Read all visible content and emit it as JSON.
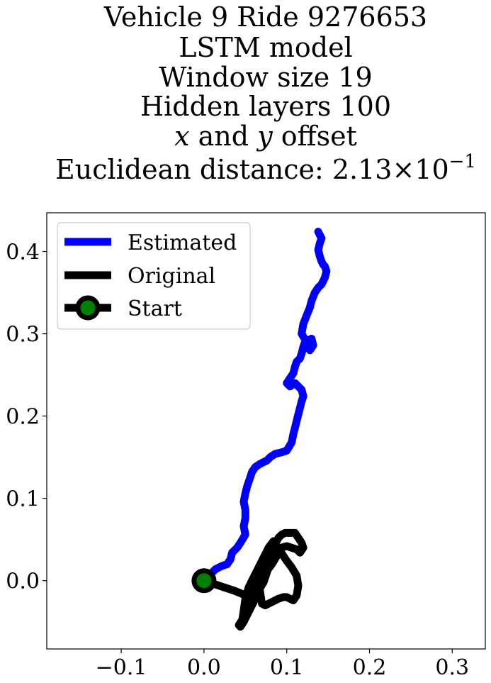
{
  "chart_data": {
    "type": "line",
    "title_lines": [
      "Vehicle 9 Ride 9276653",
      "LSTM model",
      "Window size 19",
      "Hidden layers 100",
      "x and y offset",
      "Euclidean distance: 2.13×10^-1"
    ],
    "title_parts": {
      "offset_var_x": "x",
      "offset_and": " and ",
      "offset_var_y": "y",
      "offset_suffix": " offset",
      "distance_prefix": "Euclidean distance: ",
      "distance_mantissa": "2.13",
      "distance_times": "×",
      "distance_base": "10",
      "distance_exponent": "−1"
    },
    "xlim": [
      -0.19,
      0.34
    ],
    "ylim": [
      -0.083,
      0.447
    ],
    "xticks": [
      -0.1,
      0.0,
      0.1,
      0.2,
      0.3
    ],
    "xtick_labels": [
      "−0.1",
      "0.0",
      "0.1",
      "0.2",
      "0.3"
    ],
    "yticks": [
      0.0,
      0.1,
      0.2,
      0.3,
      0.4
    ],
    "ytick_labels": [
      "0.0",
      "0.1",
      "0.2",
      "0.3",
      "0.4"
    ],
    "grid": false,
    "legend_position": "top-left",
    "series": [
      {
        "name": "Estimated",
        "color": "#0000ff",
        "x": [
          0.0,
          0.008,
          0.014,
          0.022,
          0.028,
          0.032,
          0.034,
          0.04,
          0.044,
          0.05,
          0.048,
          0.05,
          0.05,
          0.048,
          0.05,
          0.052,
          0.054,
          0.056,
          0.058,
          0.062,
          0.068,
          0.072,
          0.076,
          0.08,
          0.086,
          0.094,
          0.1,
          0.106,
          0.108,
          0.11,
          0.112,
          0.114,
          0.116,
          0.118,
          0.12,
          0.118,
          0.114,
          0.11,
          0.104,
          0.1,
          0.104,
          0.108,
          0.11,
          0.112,
          0.116,
          0.118,
          0.12,
          0.122,
          0.13,
          0.132,
          0.128,
          0.124,
          0.118,
          0.12,
          0.124,
          0.128,
          0.13,
          0.134,
          0.138,
          0.142,
          0.146,
          0.148,
          0.146,
          0.144,
          0.142,
          0.14,
          0.138,
          0.14,
          0.142,
          0.14,
          0.138
        ],
        "y": [
          0.0,
          0.008,
          0.014,
          0.018,
          0.02,
          0.026,
          0.034,
          0.04,
          0.046,
          0.056,
          0.066,
          0.076,
          0.086,
          0.096,
          0.106,
          0.114,
          0.12,
          0.126,
          0.132,
          0.138,
          0.142,
          0.144,
          0.146,
          0.15,
          0.154,
          0.156,
          0.158,
          0.168,
          0.178,
          0.186,
          0.194,
          0.202,
          0.21,
          0.218,
          0.224,
          0.232,
          0.236,
          0.24,
          0.236,
          0.24,
          0.246,
          0.252,
          0.26,
          0.266,
          0.27,
          0.276,
          0.284,
          0.29,
          0.294,
          0.286,
          0.28,
          0.29,
          0.3,
          0.312,
          0.322,
          0.332,
          0.34,
          0.35,
          0.356,
          0.36,
          0.368,
          0.376,
          0.382,
          0.384,
          0.388,
          0.394,
          0.402,
          0.41,
          0.416,
          0.42,
          0.424
        ]
      },
      {
        "name": "Original",
        "color": "#000000",
        "x": [
          0.0,
          0.012,
          0.024,
          0.036,
          0.046,
          0.052,
          0.055,
          0.056,
          0.052,
          0.046,
          0.042,
          0.044,
          0.048,
          0.052,
          0.056,
          0.06,
          0.064,
          0.068,
          0.07,
          0.074,
          0.078,
          0.082,
          0.086,
          0.09,
          0.094,
          0.098,
          0.1,
          0.104,
          0.11,
          0.114,
          0.118,
          0.12,
          0.116,
          0.112,
          0.1,
          0.086,
          0.072,
          0.066,
          0.07,
          0.074,
          0.078,
          0.082,
          0.086,
          0.09,
          0.096,
          0.1,
          0.104,
          0.108,
          0.112,
          0.114,
          0.112,
          0.106,
          0.1,
          0.096,
          0.092,
          0.09,
          0.088,
          0.082,
          0.076,
          0.07,
          0.064,
          0.06,
          0.056,
          0.054,
          0.058,
          0.062,
          0.066,
          0.072,
          0.076,
          0.08,
          0.084,
          0.086,
          0.084,
          0.078,
          0.072,
          0.066,
          0.06,
          0.054,
          0.05,
          0.048,
          0.046
        ],
        "y": [
          0.0,
          -0.004,
          -0.008,
          -0.012,
          -0.016,
          -0.02,
          -0.026,
          -0.034,
          -0.04,
          -0.048,
          -0.054,
          -0.056,
          -0.05,
          -0.042,
          -0.034,
          -0.026,
          -0.016,
          -0.004,
          0.006,
          0.016,
          0.026,
          0.034,
          0.044,
          0.052,
          0.056,
          0.058,
          0.058,
          0.058,
          0.058,
          0.052,
          0.046,
          0.04,
          0.034,
          0.038,
          0.042,
          0.038,
          0.022,
          -0.002,
          -0.028,
          -0.03,
          -0.028,
          -0.026,
          -0.024,
          -0.022,
          -0.02,
          -0.02,
          -0.022,
          -0.024,
          -0.018,
          -0.006,
          0.006,
          0.016,
          0.024,
          0.03,
          0.036,
          0.036,
          0.03,
          0.02,
          0.012,
          0.006,
          0.0,
          -0.006,
          -0.012,
          -0.02,
          -0.026,
          -0.02,
          -0.012,
          -0.002,
          0.01,
          0.022,
          0.034,
          0.046,
          0.048,
          0.04,
          0.028,
          0.016,
          0.004,
          -0.008,
          -0.022,
          -0.036,
          -0.05
        ]
      }
    ],
    "start": {
      "name": "Start",
      "x": 0.0,
      "y": 0.0,
      "edge_color": "#000000",
      "fill_color": "#008000"
    }
  }
}
